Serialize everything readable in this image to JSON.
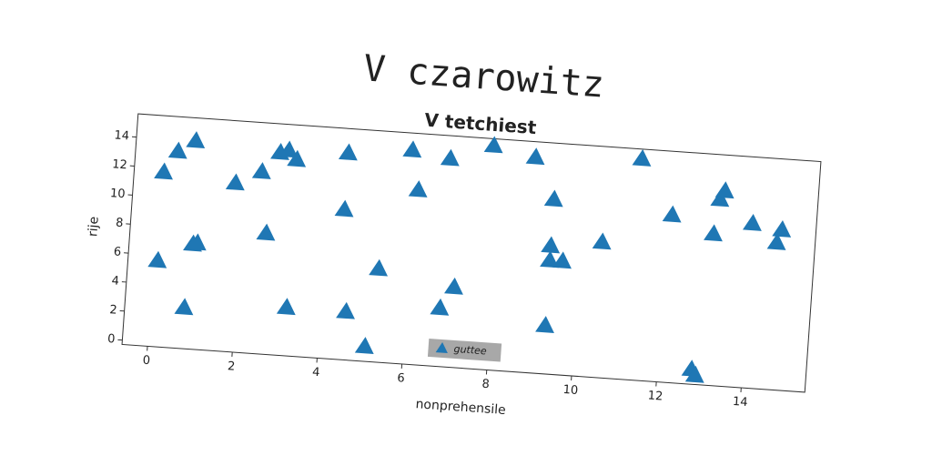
{
  "chart_data": {
    "type": "scatter",
    "suptitle": "V czarowitz",
    "title": "V tetchiest",
    "x_label": "nonprehensile",
    "y_label": "rije",
    "series": [
      {
        "name": "guttee",
        "color": "#1f77b4",
        "x": [
          0.1,
          0.1,
          0.4,
          0.8,
          0.8,
          0.9,
          1.0,
          1.8,
          2.4,
          2.6,
          2.8,
          3.0,
          3.2,
          3.2,
          4.4,
          4.6,
          4.4,
          5.1,
          5.3,
          5.9,
          6.1,
          6.8,
          6.8,
          7.1,
          7.8,
          8.8,
          9.3,
          9.3,
          9.3,
          9.6,
          9.3,
          10.5,
          11.3,
          12.1,
          12.8,
          12.9,
          13.1,
          13.2,
          13.3,
          14.0,
          14.6,
          14.7
        ],
        "values": [
          5.6,
          11.7,
          13.2,
          14.0,
          2.5,
          6.9,
          7.0,
          11.3,
          12.2,
          8.0,
          13.6,
          13.8,
          13.2,
          3.0,
          10.0,
          3.0,
          13.9,
          0.7,
          6.1,
          14.4,
          11.7,
          3.7,
          14.0,
          5.2,
          15.1,
          14.5,
          3.0,
          8.5,
          7.5,
          7.5,
          11.7,
          9.0,
          14.9,
          11.2,
          0.7,
          0.3,
          10.1,
          12.5,
          13.1,
          11.0,
          9.8,
          10.7
        ]
      }
    ],
    "xlim": [
      -0.6,
      15.5
    ],
    "ylim": [
      -0.3,
      15.6
    ],
    "xticks": [
      0,
      2,
      4,
      6,
      8,
      10,
      12,
      14
    ],
    "yticks": [
      0,
      2,
      4,
      6,
      8,
      10,
      12,
      14
    ],
    "legend": "lower center"
  }
}
